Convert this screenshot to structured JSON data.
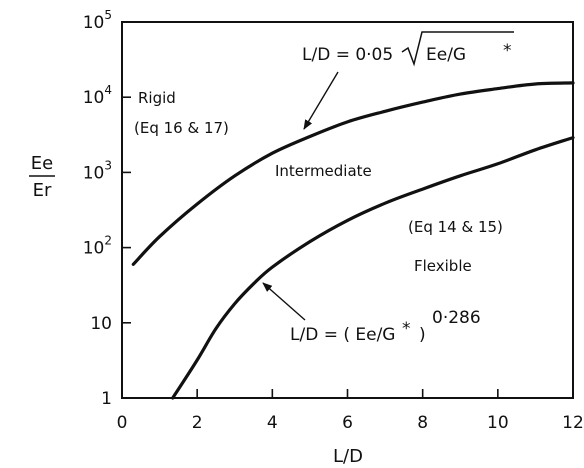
{
  "chart_data": {
    "type": "line",
    "title": "",
    "xlabel": "L/D",
    "ylabel": {
      "numerator": "Ee",
      "denominator": "Er"
    },
    "xlim": [
      0,
      12
    ],
    "ylim": [
      1,
      100000
    ],
    "y_scale": "log",
    "grid": false,
    "x_ticks": [
      "0",
      "2",
      "4",
      "6",
      "8",
      "10",
      "12"
    ],
    "y_ticks": [
      {
        "value": 1,
        "base": "1",
        "exp": ""
      },
      {
        "value": 10,
        "base": "10",
        "exp": ""
      },
      {
        "value": 100,
        "base": "10",
        "exp": "2"
      },
      {
        "value": 1000,
        "base": "10",
        "exp": "3"
      },
      {
        "value": 10000,
        "base": "10",
        "exp": "4"
      },
      {
        "value": 100000,
        "base": "10",
        "exp": "5"
      }
    ],
    "series": [
      {
        "x": [
          0.3,
          1,
          2,
          3,
          4,
          5,
          6,
          7,
          8,
          9,
          10,
          11,
          12
        ],
        "y": [
          60,
          140,
          380,
          900,
          1800,
          3000,
          4700,
          6500,
          8600,
          11000,
          13000,
          15000,
          15500
        ]
      },
      {
        "x": [
          1.35,
          2,
          2.5,
          3,
          3.5,
          4,
          5,
          6,
          7,
          8,
          9,
          10,
          11,
          12
        ],
        "y": [
          1,
          3.2,
          8.4,
          18,
          33,
          55,
          120,
          230,
          390,
          600,
          900,
          1300,
          2000,
          2900
        ]
      }
    ],
    "annotations": {
      "upper_equation": {
        "lhs": "L/D = 0·05",
        "radicand": "Ee/G",
        "star": "*"
      },
      "lower_equation": {
        "lhs": "L/D = ( Ee/G",
        "star": "*",
        "close": ")",
        "exponent": "0·286"
      },
      "rigid": "Rigid",
      "rigid_eq": "(Eq 16 & 17)",
      "intermediate": "Intermediate",
      "flexible_eq": "(Eq 14 & 15)",
      "flexible": "Flexible"
    }
  }
}
